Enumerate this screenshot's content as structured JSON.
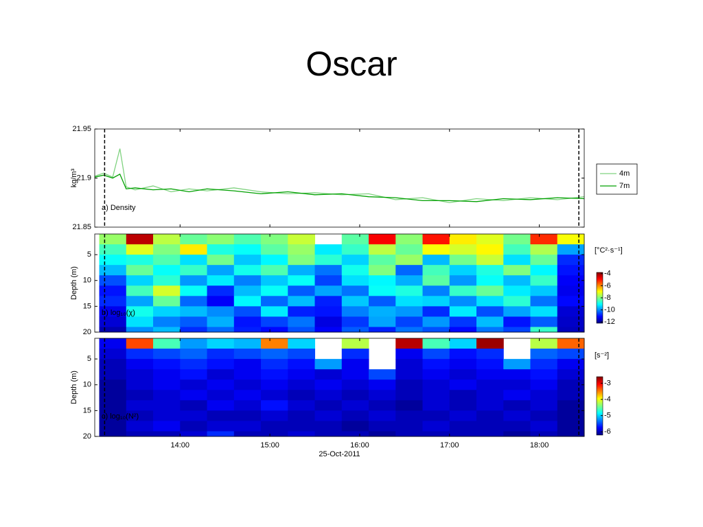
{
  "title": "Oscar",
  "chart_data": [
    {
      "type": "line",
      "ylabel": "kg/m³",
      "annotation": "a) Density",
      "xlim": [
        13.05,
        18.5
      ],
      "ylim": [
        21.85,
        21.95
      ],
      "yticks": [
        21.85,
        21.9,
        21.95
      ],
      "vlines": [
        13.16,
        18.44
      ],
      "x": [
        13.05,
        13.15,
        13.25,
        13.33,
        13.4,
        13.5,
        13.7,
        13.9,
        14.1,
        14.3,
        14.6,
        14.9,
        15.2,
        15.5,
        15.8,
        16.1,
        16.4,
        16.7,
        17.0,
        17.3,
        17.6,
        17.9,
        18.2,
        18.5
      ],
      "series": [
        {
          "name": "4m",
          "color": "#7fd27f",
          "values": [
            21.902,
            21.905,
            21.901,
            21.93,
            21.891,
            21.888,
            21.892,
            21.886,
            21.889,
            21.887,
            21.89,
            21.886,
            21.884,
            21.885,
            21.883,
            21.884,
            21.878,
            21.88,
            21.875,
            21.879,
            21.877,
            21.88,
            21.878,
            21.881
          ]
        },
        {
          "name": "7m",
          "color": "#00a000",
          "values": [
            21.901,
            21.903,
            21.9,
            21.904,
            21.889,
            21.89,
            21.888,
            21.889,
            21.886,
            21.889,
            21.887,
            21.884,
            21.886,
            21.883,
            21.884,
            21.881,
            21.88,
            21.877,
            21.877,
            21.876,
            21.879,
            21.878,
            21.88,
            21.879
          ]
        }
      ]
    },
    {
      "type": "heatmap",
      "ylabel": "Depth (m)",
      "annotation": "b) log₁₀(χ)",
      "colorbar_label": "[°C²·s⁻¹]",
      "xlim": [
        13.05,
        18.5
      ],
      "ylim": [
        20,
        1
      ],
      "yticks": [
        5,
        10,
        15,
        20
      ],
      "vlines": [
        13.16,
        18.44
      ],
      "clim": [
        -12.2,
        -3.8
      ],
      "cticks": [
        -4,
        -6,
        -8,
        -10,
        -12
      ],
      "colormap": "jet",
      "xedges": [
        13.1,
        13.4,
        13.7,
        14.0,
        14.3,
        14.6,
        14.9,
        15.2,
        15.5,
        15.8,
        16.1,
        16.4,
        16.7,
        17.0,
        17.3,
        17.6,
        17.9,
        18.2,
        18.5
      ],
      "yedges": [
        1,
        3,
        5,
        7,
        9,
        11,
        13,
        15,
        17,
        19,
        20
      ],
      "values": [
        [
          -7.8,
          -4.3,
          -7.5,
          -8.2,
          -7.9,
          -8.4,
          -8.0,
          -7.4,
          null,
          -8.3,
          -4.8,
          -7.9,
          -5.0,
          -6.8,
          -7.2,
          -8.1,
          -5.2,
          -7.0
        ],
        [
          -8.5,
          -7.2,
          -8.0,
          -6.8,
          -8.8,
          -9.0,
          -8.3,
          -7.8,
          -9.2,
          -8.6,
          -7.5,
          -8.2,
          -7.0,
          -7.3,
          -6.9,
          -8.5,
          -7.6,
          -9.8
        ],
        [
          -9.0,
          -8.8,
          -8.4,
          -9.3,
          -8.1,
          -9.5,
          -9.1,
          -8.0,
          -8.7,
          -9.4,
          -8.3,
          -7.8,
          -9.6,
          -8.1,
          -7.4,
          -9.3,
          -8.2,
          -10.8
        ],
        [
          -9.6,
          -8.2,
          -9.0,
          -8.6,
          -9.8,
          -8.9,
          -8.4,
          -9.7,
          -10.2,
          -8.9,
          -8.0,
          -10.3,
          -8.5,
          -9.4,
          -8.8,
          -8.0,
          -9.1,
          -11.0
        ],
        [
          -10.5,
          -9.4,
          -8.7,
          -9.9,
          -9.2,
          -10.1,
          -9.5,
          -9.0,
          -10.6,
          -9.3,
          -9.1,
          -9.7,
          -8.3,
          -9.9,
          -9.0,
          -9.6,
          -8.6,
          -11.2
        ],
        [
          -11.0,
          -8.5,
          -7.3,
          -9.0,
          -10.8,
          -9.6,
          -9.0,
          -10.4,
          -9.8,
          -10.2,
          -9.0,
          -8.8,
          -10.1,
          -8.6,
          -8.2,
          -9.2,
          -9.5,
          -11.3
        ],
        [
          -10.8,
          -9.8,
          -8.2,
          -10.3,
          -11.2,
          -9.1,
          -10.3,
          -9.6,
          -10.9,
          -9.5,
          -10.4,
          -9.3,
          -9.4,
          -10.0,
          -9.3,
          -8.7,
          -10.2,
          -11.1
        ],
        [
          -11.3,
          -8.9,
          -9.4,
          -9.6,
          -10.0,
          -10.5,
          -9.2,
          -10.9,
          -11.0,
          -10.1,
          -9.7,
          -9.9,
          -10.8,
          -9.2,
          -10.5,
          -9.8,
          -9.3,
          -11.5
        ],
        [
          -11.5,
          -9.3,
          -10.1,
          -10.4,
          -9.7,
          -11.0,
          -10.6,
          -10.2,
          -11.4,
          -10.7,
          -9.8,
          -10.6,
          -9.9,
          -10.7,
          -9.6,
          -11.0,
          -10.4,
          -11.6
        ],
        [
          -11.8,
          -10.0,
          -9.6,
          -10.8,
          -10.3,
          -10.9,
          -11.1,
          -10.5,
          -11.2,
          -10.4,
          -10.9,
          -10.2,
          -10.5,
          -11.1,
          -10.2,
          -10.6,
          -8.6,
          -11.7
        ]
      ]
    },
    {
      "type": "heatmap",
      "ylabel": "Depth (m)",
      "annotation": "c) log₁₀(N²)",
      "colorbar_label": "[s⁻²]",
      "xlabel": "25-Oct-2011",
      "xlim": [
        13.05,
        18.5
      ],
      "ylim": [
        20,
        1
      ],
      "yticks": [
        5,
        10,
        15,
        20
      ],
      "vlines": [
        13.16,
        18.44
      ],
      "xticks": [
        {
          "value": 14,
          "label": "14:00"
        },
        {
          "value": 15,
          "label": "15:00"
        },
        {
          "value": 16,
          "label": "16:00"
        },
        {
          "value": 17,
          "label": "17:00"
        },
        {
          "value": 18,
          "label": "18:00"
        }
      ],
      "clim": [
        -6.2,
        -2.6
      ],
      "cticks": [
        -3,
        -4,
        -5,
        -6
      ],
      "colormap": "jet",
      "xedges": [
        13.1,
        13.4,
        13.7,
        14.0,
        14.3,
        14.6,
        14.9,
        15.2,
        15.5,
        15.8,
        16.1,
        16.4,
        16.7,
        17.0,
        17.3,
        17.6,
        17.9,
        18.2,
        18.5
      ],
      "yedges": [
        1,
        3,
        5,
        7,
        9,
        11,
        13,
        15,
        17,
        19,
        20
      ],
      "values": [
        [
          -5.8,
          -3.3,
          -4.6,
          -5.2,
          -5.0,
          -5.1,
          -3.5,
          -5.0,
          null,
          -4.2,
          null,
          -2.8,
          -4.6,
          -5.0,
          -2.7,
          null,
          -4.2,
          -3.4
        ],
        [
          -5.9,
          -5.6,
          -5.5,
          -5.4,
          -5.6,
          -5.5,
          -5.4,
          -5.5,
          null,
          -5.6,
          null,
          -5.8,
          -5.5,
          -5.7,
          -5.6,
          null,
          -5.4,
          -5.5
        ],
        [
          -6.0,
          -5.8,
          -5.7,
          -5.6,
          -5.7,
          -5.8,
          -5.6,
          -5.7,
          -5.2,
          -5.8,
          null,
          -5.9,
          -5.7,
          -5.8,
          -5.7,
          -5.2,
          -5.6,
          -5.8
        ],
        [
          -6.0,
          -5.9,
          -5.8,
          -5.7,
          -5.9,
          -5.8,
          -5.7,
          -5.8,
          -5.9,
          -5.8,
          -5.5,
          -5.9,
          -5.8,
          -5.9,
          -5.8,
          -5.8,
          -5.7,
          -5.9
        ],
        [
          -6.1,
          -5.9,
          -5.8,
          -5.9,
          -5.8,
          -5.9,
          -5.8,
          -5.9,
          -5.8,
          -5.9,
          -5.8,
          -6.0,
          -5.9,
          -5.8,
          -5.9,
          -5.9,
          -5.8,
          -6.0
        ],
        [
          -6.1,
          -6.0,
          -5.9,
          -5.8,
          -5.9,
          -5.8,
          -5.9,
          -6.0,
          -5.9,
          -6.0,
          -5.9,
          -6.0,
          -5.9,
          -6.0,
          -5.9,
          -5.8,
          -5.9,
          -6.0
        ],
        [
          -6.1,
          -5.9,
          -5.9,
          -6.0,
          -5.8,
          -5.9,
          -5.7,
          -5.9,
          -6.0,
          -5.9,
          -6.0,
          -6.1,
          -5.9,
          -6.0,
          -5.9,
          -6.0,
          -5.9,
          -6.1
        ],
        [
          -6.1,
          -6.0,
          -5.9,
          -5.9,
          -6.0,
          -6.0,
          -5.9,
          -6.0,
          -5.9,
          -6.0,
          -5.9,
          -6.0,
          -6.0,
          -5.9,
          -6.0,
          -5.9,
          -6.0,
          -6.1
        ],
        [
          -6.1,
          -5.9,
          -5.8,
          -6.0,
          -5.9,
          -5.9,
          -6.0,
          -6.0,
          -6.0,
          -6.1,
          -6.0,
          -6.0,
          -5.9,
          -6.0,
          -6.0,
          -6.0,
          -5.9,
          -6.1
        ],
        [
          -6.1,
          -6.0,
          -6.0,
          -5.9,
          -5.6,
          -6.0,
          -6.0,
          -5.9,
          -6.0,
          -6.0,
          -6.1,
          -6.0,
          -6.0,
          -6.0,
          -6.0,
          -6.1,
          -6.0,
          -6.1
        ]
      ]
    }
  ]
}
